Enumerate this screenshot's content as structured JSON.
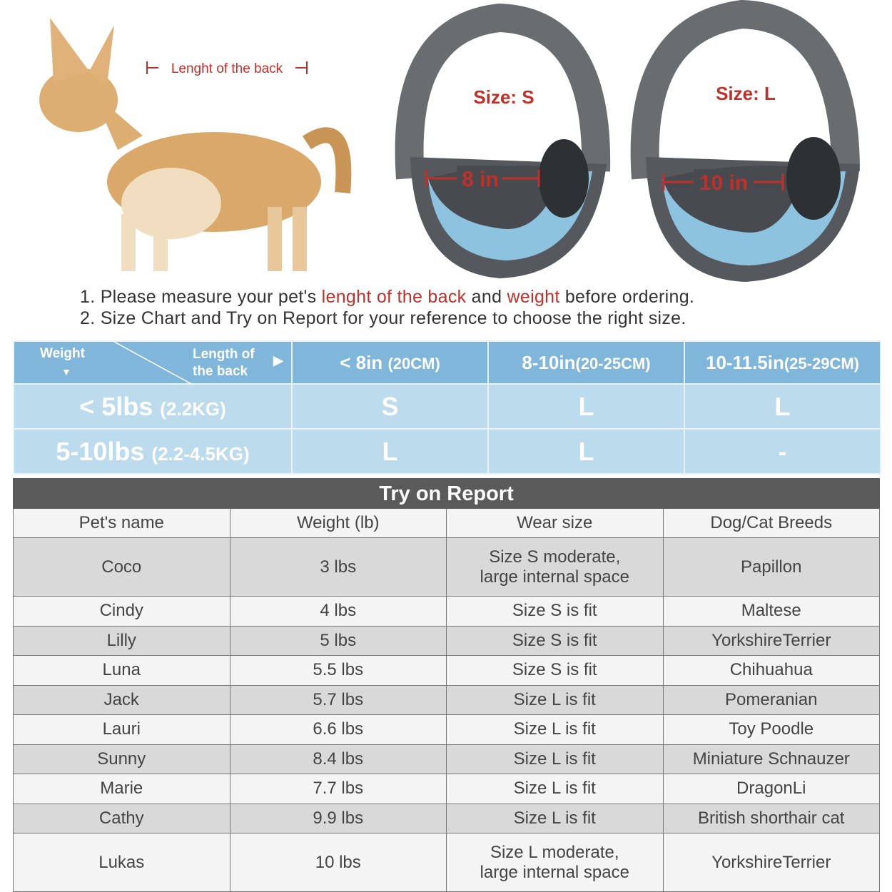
{
  "illustration": {
    "dog_label": "Lenght of the back",
    "bag_small": {
      "size_label": "Size: S",
      "measure": "8 in"
    },
    "bag_large": {
      "size_label": "Size: L",
      "measure": "10 in"
    },
    "colors": {
      "accent_red": "#c0302a",
      "bag_blue": "#8ec3e0",
      "bag_gray": "#5b5f63"
    }
  },
  "notes": [
    {
      "prefix": "1. Please measure your pet's ",
      "em1": "lenght of the back",
      "mid": " and ",
      "em2": "weight",
      "suffix": " before ordering."
    },
    {
      "text": "2. Size Chart and Try on Report for your reference to choose the right size."
    }
  ],
  "size_chart": {
    "corner": {
      "weight": "Weight",
      "length": "Length of the back"
    },
    "columns": [
      {
        "main": "< 8in",
        "sub": "(20CM)"
      },
      {
        "main": "8-10in",
        "sub": "(20-25CM)"
      },
      {
        "main": "10-11.5in",
        "sub": "(25-29CM)"
      }
    ],
    "rows": [
      {
        "main": "< 5lbs",
        "sub": "(2.2KG)",
        "cells": [
          "S",
          "L",
          "L"
        ]
      },
      {
        "main": "5-10lbs",
        "sub": "(2.2-4.5KG)",
        "cells": [
          "L",
          "L",
          "-"
        ]
      }
    ],
    "colors": {
      "header": "#7fb6da",
      "body": "#bcdbec"
    }
  },
  "report": {
    "title": "Try on Report",
    "headers": [
      "Pet's name",
      "Weight (lb)",
      "Wear size",
      "Dog/Cat Breeds"
    ],
    "rows": [
      [
        "Coco",
        "3 lbs",
        "Size S moderate,\nlarge internal space",
        "Papillon"
      ],
      [
        "Cindy",
        "4 lbs",
        "Size S is fit",
        "Maltese"
      ],
      [
        "Lilly",
        "5 lbs",
        "Size S is fit",
        "YorkshireTerrier"
      ],
      [
        "Luna",
        "5.5 lbs",
        "Size S is fit",
        "Chihuahua"
      ],
      [
        "Jack",
        "5.7 lbs",
        "Size L is fit",
        "Pomeranian"
      ],
      [
        "Lauri",
        "6.6 lbs",
        "Size L is fit",
        "Toy Poodle"
      ],
      [
        "Sunny",
        "8.4 lbs",
        "Size L is fit",
        "Miniature Schnauzer"
      ],
      [
        "Marie",
        "7.7 lbs",
        "Size L is fit",
        "DragonLi"
      ],
      [
        "Cathy",
        "9.9 lbs",
        "Size L is fit",
        "British shorthair cat"
      ],
      [
        "Lukas",
        "10 lbs",
        "Size L moderate,\nlarge internal space",
        "YorkshireTerrier"
      ]
    ]
  }
}
